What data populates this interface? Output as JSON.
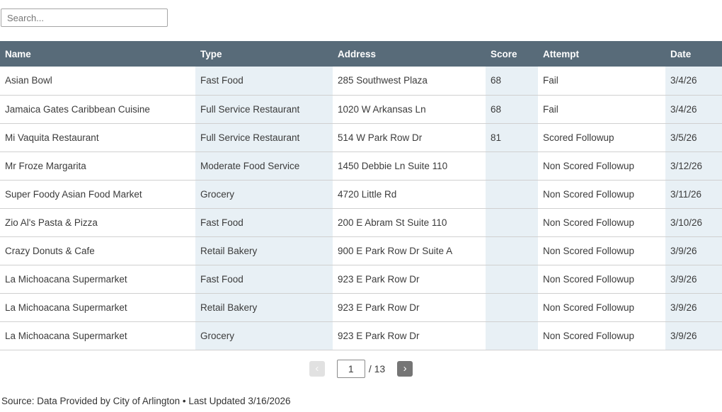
{
  "search": {
    "placeholder": "Search..."
  },
  "table": {
    "columns": [
      {
        "key": "name",
        "label": "Name"
      },
      {
        "key": "type",
        "label": "Type"
      },
      {
        "key": "address",
        "label": "Address"
      },
      {
        "key": "score",
        "label": "Score"
      },
      {
        "key": "attempt",
        "label": "Attempt"
      },
      {
        "key": "date",
        "label": "Date"
      }
    ],
    "rows": [
      {
        "name": "Asian Bowl",
        "type": "Fast Food",
        "address": "285 Southwest Plaza",
        "score": "68",
        "attempt": "Fail",
        "date": "3/4/26"
      },
      {
        "name": "Jamaica Gates Caribbean Cuisine",
        "type": "Full Service Restaurant",
        "address": "1020 W Arkansas Ln",
        "score": "68",
        "attempt": "Fail",
        "date": "3/4/26"
      },
      {
        "name": "Mi Vaquita Restaurant",
        "type": "Full Service Restaurant",
        "address": "514 W Park Row Dr",
        "score": "81",
        "attempt": "Scored Followup",
        "date": "3/5/26"
      },
      {
        "name": "Mr Froze Margarita",
        "type": "Moderate Food Service",
        "address": "1450 Debbie Ln Suite 110",
        "score": "",
        "attempt": "Non Scored Followup",
        "date": "3/12/26"
      },
      {
        "name": "Super Foody Asian Food Market",
        "type": "Grocery",
        "address": "4720 Little Rd",
        "score": "",
        "attempt": "Non Scored Followup",
        "date": "3/11/26"
      },
      {
        "name": "Zio Al's Pasta & Pizza",
        "type": "Fast Food",
        "address": "200 E Abram St Suite 110",
        "score": "",
        "attempt": "Non Scored Followup",
        "date": "3/10/26"
      },
      {
        "name": "Crazy Donuts & Cafe",
        "type": "Retail Bakery",
        "address": "900 E Park Row Dr Suite A",
        "score": "",
        "attempt": "Non Scored Followup",
        "date": "3/9/26"
      },
      {
        "name": "La Michoacana Supermarket",
        "type": "Fast Food",
        "address": "923 E Park Row Dr",
        "score": "",
        "attempt": "Non Scored Followup",
        "date": "3/9/26"
      },
      {
        "name": "La Michoacana Supermarket",
        "type": "Retail Bakery",
        "address": "923 E Park Row Dr",
        "score": "",
        "attempt": "Non Scored Followup",
        "date": "3/9/26"
      },
      {
        "name": "La Michoacana Supermarket",
        "type": "Grocery",
        "address": "923 E Park Row Dr",
        "score": "",
        "attempt": "Non Scored Followup",
        "date": "3/9/26"
      }
    ]
  },
  "pagination": {
    "prev_icon": "‹",
    "next_icon": "›",
    "current_page": "1",
    "total_label": "/ 13"
  },
  "footer": {
    "source_text": "Source: Data Provided by City of Arlington • Last Updated 3/16/2026"
  },
  "colors": {
    "header_bg": "#586b79",
    "header_text": "#ffffff",
    "alt_column_bg": "#e8f0f5",
    "row_border": "#d0d0d0",
    "next_button_bg": "#757575",
    "prev_button_bg": "#e1e1e1"
  }
}
